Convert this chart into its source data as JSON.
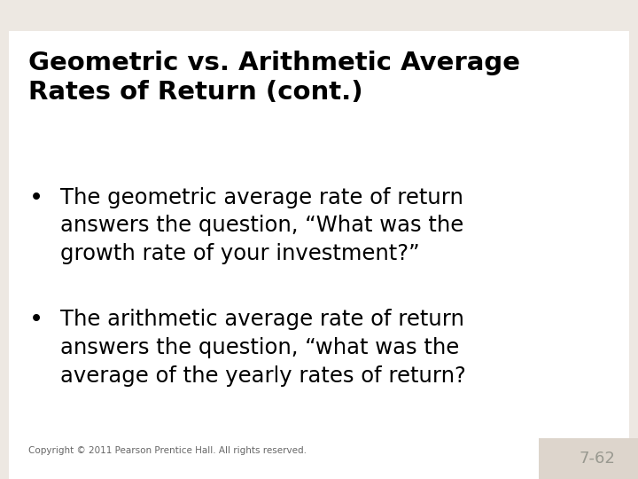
{
  "title_line1": "Geometric vs. Arithmetic Average",
  "title_line2": "Rates of Return (cont.)",
  "bullet1_line1": "The geometric average rate of return",
  "bullet1_line2": "answers the question, “What was the",
  "bullet1_line3": "growth rate of your investment?”",
  "bullet2_line1": "The arithmetic average rate of return",
  "bullet2_line2": "answers the question, “what was the",
  "bullet2_line3": "average of the yearly rates of return?",
  "copyright": "Copyright © 2011 Pearson Prentice Hall. All rights reserved.",
  "page_number": "7-62",
  "bg_color": "#ede8e2",
  "content_bg": "#ffffff",
  "page_num_bg": "#ddd5cc",
  "title_font_size": 21,
  "bullet_font_size": 17.5,
  "copyright_font_size": 7.5,
  "page_num_font_size": 13
}
